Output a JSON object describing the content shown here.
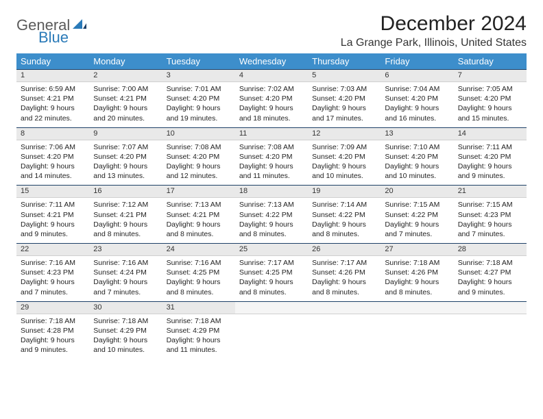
{
  "brand": {
    "general": "General",
    "blue": "Blue"
  },
  "title": "December 2024",
  "location": "La Grange Park, Illinois, United States",
  "colors": {
    "header_bg": "#3d8ecb",
    "header_text": "#ffffff",
    "daynum_bg": "#e9e9e9",
    "daynum_border_top": "#1c3f66",
    "body_text": "#222222",
    "brand_gray": "#5a5a5a",
    "brand_blue": "#2a7ab8",
    "page_bg": "#ffffff"
  },
  "typography": {
    "title_fontsize": 30,
    "location_fontsize": 16,
    "dayheader_fontsize": 13,
    "daynum_fontsize": 11,
    "cell_fontsize": 10.5
  },
  "day_headers": [
    "Sunday",
    "Monday",
    "Tuesday",
    "Wednesday",
    "Thursday",
    "Friday",
    "Saturday"
  ],
  "weeks": [
    [
      {
        "num": "1",
        "sunrise": "Sunrise: 6:59 AM",
        "sunset": "Sunset: 4:21 PM",
        "daylight": "Daylight: 9 hours and 22 minutes."
      },
      {
        "num": "2",
        "sunrise": "Sunrise: 7:00 AM",
        "sunset": "Sunset: 4:21 PM",
        "daylight": "Daylight: 9 hours and 20 minutes."
      },
      {
        "num": "3",
        "sunrise": "Sunrise: 7:01 AM",
        "sunset": "Sunset: 4:20 PM",
        "daylight": "Daylight: 9 hours and 19 minutes."
      },
      {
        "num": "4",
        "sunrise": "Sunrise: 7:02 AM",
        "sunset": "Sunset: 4:20 PM",
        "daylight": "Daylight: 9 hours and 18 minutes."
      },
      {
        "num": "5",
        "sunrise": "Sunrise: 7:03 AM",
        "sunset": "Sunset: 4:20 PM",
        "daylight": "Daylight: 9 hours and 17 minutes."
      },
      {
        "num": "6",
        "sunrise": "Sunrise: 7:04 AM",
        "sunset": "Sunset: 4:20 PM",
        "daylight": "Daylight: 9 hours and 16 minutes."
      },
      {
        "num": "7",
        "sunrise": "Sunrise: 7:05 AM",
        "sunset": "Sunset: 4:20 PM",
        "daylight": "Daylight: 9 hours and 15 minutes."
      }
    ],
    [
      {
        "num": "8",
        "sunrise": "Sunrise: 7:06 AM",
        "sunset": "Sunset: 4:20 PM",
        "daylight": "Daylight: 9 hours and 14 minutes."
      },
      {
        "num": "9",
        "sunrise": "Sunrise: 7:07 AM",
        "sunset": "Sunset: 4:20 PM",
        "daylight": "Daylight: 9 hours and 13 minutes."
      },
      {
        "num": "10",
        "sunrise": "Sunrise: 7:08 AM",
        "sunset": "Sunset: 4:20 PM",
        "daylight": "Daylight: 9 hours and 12 minutes."
      },
      {
        "num": "11",
        "sunrise": "Sunrise: 7:08 AM",
        "sunset": "Sunset: 4:20 PM",
        "daylight": "Daylight: 9 hours and 11 minutes."
      },
      {
        "num": "12",
        "sunrise": "Sunrise: 7:09 AM",
        "sunset": "Sunset: 4:20 PM",
        "daylight": "Daylight: 9 hours and 10 minutes."
      },
      {
        "num": "13",
        "sunrise": "Sunrise: 7:10 AM",
        "sunset": "Sunset: 4:20 PM",
        "daylight": "Daylight: 9 hours and 10 minutes."
      },
      {
        "num": "14",
        "sunrise": "Sunrise: 7:11 AM",
        "sunset": "Sunset: 4:20 PM",
        "daylight": "Daylight: 9 hours and 9 minutes."
      }
    ],
    [
      {
        "num": "15",
        "sunrise": "Sunrise: 7:11 AM",
        "sunset": "Sunset: 4:21 PM",
        "daylight": "Daylight: 9 hours and 9 minutes."
      },
      {
        "num": "16",
        "sunrise": "Sunrise: 7:12 AM",
        "sunset": "Sunset: 4:21 PM",
        "daylight": "Daylight: 9 hours and 8 minutes."
      },
      {
        "num": "17",
        "sunrise": "Sunrise: 7:13 AM",
        "sunset": "Sunset: 4:21 PM",
        "daylight": "Daylight: 9 hours and 8 minutes."
      },
      {
        "num": "18",
        "sunrise": "Sunrise: 7:13 AM",
        "sunset": "Sunset: 4:22 PM",
        "daylight": "Daylight: 9 hours and 8 minutes."
      },
      {
        "num": "19",
        "sunrise": "Sunrise: 7:14 AM",
        "sunset": "Sunset: 4:22 PM",
        "daylight": "Daylight: 9 hours and 8 minutes."
      },
      {
        "num": "20",
        "sunrise": "Sunrise: 7:15 AM",
        "sunset": "Sunset: 4:22 PM",
        "daylight": "Daylight: 9 hours and 7 minutes."
      },
      {
        "num": "21",
        "sunrise": "Sunrise: 7:15 AM",
        "sunset": "Sunset: 4:23 PM",
        "daylight": "Daylight: 9 hours and 7 minutes."
      }
    ],
    [
      {
        "num": "22",
        "sunrise": "Sunrise: 7:16 AM",
        "sunset": "Sunset: 4:23 PM",
        "daylight": "Daylight: 9 hours and 7 minutes."
      },
      {
        "num": "23",
        "sunrise": "Sunrise: 7:16 AM",
        "sunset": "Sunset: 4:24 PM",
        "daylight": "Daylight: 9 hours and 7 minutes."
      },
      {
        "num": "24",
        "sunrise": "Sunrise: 7:16 AM",
        "sunset": "Sunset: 4:25 PM",
        "daylight": "Daylight: 9 hours and 8 minutes."
      },
      {
        "num": "25",
        "sunrise": "Sunrise: 7:17 AM",
        "sunset": "Sunset: 4:25 PM",
        "daylight": "Daylight: 9 hours and 8 minutes."
      },
      {
        "num": "26",
        "sunrise": "Sunrise: 7:17 AM",
        "sunset": "Sunset: 4:26 PM",
        "daylight": "Daylight: 9 hours and 8 minutes."
      },
      {
        "num": "27",
        "sunrise": "Sunrise: 7:18 AM",
        "sunset": "Sunset: 4:26 PM",
        "daylight": "Daylight: 9 hours and 8 minutes."
      },
      {
        "num": "28",
        "sunrise": "Sunrise: 7:18 AM",
        "sunset": "Sunset: 4:27 PM",
        "daylight": "Daylight: 9 hours and 9 minutes."
      }
    ],
    [
      {
        "num": "29",
        "sunrise": "Sunrise: 7:18 AM",
        "sunset": "Sunset: 4:28 PM",
        "daylight": "Daylight: 9 hours and 9 minutes."
      },
      {
        "num": "30",
        "sunrise": "Sunrise: 7:18 AM",
        "sunset": "Sunset: 4:29 PM",
        "daylight": "Daylight: 9 hours and 10 minutes."
      },
      {
        "num": "31",
        "sunrise": "Sunrise: 7:18 AM",
        "sunset": "Sunset: 4:29 PM",
        "daylight": "Daylight: 9 hours and 11 minutes."
      },
      null,
      null,
      null,
      null
    ]
  ]
}
